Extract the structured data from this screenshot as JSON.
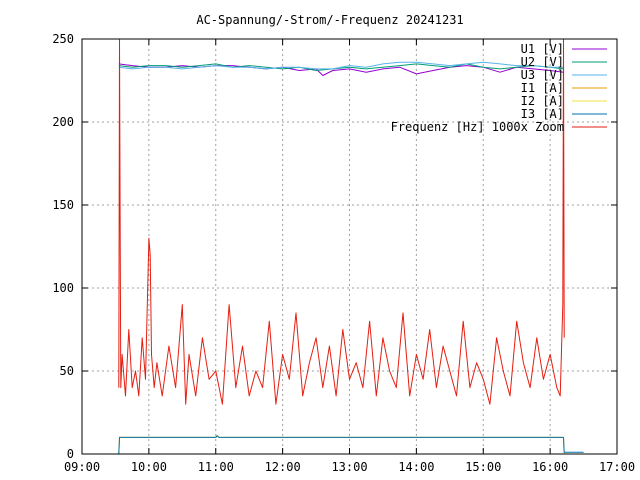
{
  "chart_data": {
    "type": "line",
    "title": "AC-Spannung/-Strom/-Frequenz 20241231",
    "xlabel": "",
    "ylabel": "",
    "x_unit": "time of day (hours)",
    "xlim": [
      9,
      17
    ],
    "ylim": [
      0,
      250
    ],
    "grid": true,
    "legend_position": "top-right",
    "x_ticks": [
      {
        "value": 9,
        "label": "09:00"
      },
      {
        "value": 10,
        "label": "10:00"
      },
      {
        "value": 11,
        "label": "11:00"
      },
      {
        "value": 12,
        "label": "12:00"
      },
      {
        "value": 13,
        "label": "13:00"
      },
      {
        "value": 14,
        "label": "14:00"
      },
      {
        "value": 15,
        "label": "15:00"
      },
      {
        "value": 16,
        "label": "16:00"
      },
      {
        "value": 17,
        "label": "17:00"
      }
    ],
    "y_ticks": [
      {
        "value": 0,
        "label": "0"
      },
      {
        "value": 50,
        "label": "50"
      },
      {
        "value": 100,
        "label": "100"
      },
      {
        "value": 150,
        "label": "150"
      },
      {
        "value": 200,
        "label": "200"
      },
      {
        "value": 250,
        "label": "250"
      }
    ],
    "series": [
      {
        "name": "U1 [V]",
        "color": "#9400d3",
        "x": [
          9.55,
          9.75,
          10.0,
          10.25,
          10.5,
          10.75,
          11.0,
          11.25,
          11.5,
          11.75,
          12.0,
          12.25,
          12.5,
          12.6,
          12.75,
          13.0,
          13.25,
          13.5,
          13.75,
          14.0,
          14.25,
          14.5,
          14.75,
          15.0,
          15.25,
          15.5,
          15.75,
          16.0,
          16.2
        ],
        "y": [
          235,
          234,
          233,
          233,
          234,
          233,
          234,
          234,
          233,
          232,
          233,
          231,
          232,
          228,
          231,
          232,
          230,
          232,
          233,
          229,
          231,
          233,
          234,
          233,
          230,
          233,
          232,
          231,
          230
        ]
      },
      {
        "name": "U2 [V]",
        "color": "#009e73",
        "x": [
          9.55,
          9.75,
          10.0,
          10.25,
          10.5,
          10.75,
          11.0,
          11.25,
          11.5,
          11.75,
          12.0,
          12.25,
          12.5,
          12.75,
          13.0,
          13.25,
          13.5,
          13.75,
          14.0,
          14.25,
          14.5,
          14.75,
          15.0,
          15.25,
          15.5,
          15.75,
          16.0,
          16.2
        ],
        "y": [
          234,
          233,
          234,
          234,
          233,
          234,
          235,
          233,
          234,
          233,
          232,
          233,
          231,
          232,
          233,
          232,
          233,
          234,
          235,
          234,
          233,
          235,
          233,
          232,
          233,
          234,
          233,
          232
        ]
      },
      {
        "name": "U3 [V]",
        "color": "#56b4e9",
        "x": [
          9.55,
          9.75,
          10.0,
          10.25,
          10.5,
          10.75,
          11.0,
          11.25,
          11.5,
          11.75,
          12.0,
          12.25,
          12.5,
          12.75,
          13.0,
          13.25,
          13.5,
          13.75,
          14.0,
          14.25,
          14.5,
          14.75,
          15.0,
          15.25,
          15.5,
          15.75,
          16.0,
          16.2
        ],
        "y": [
          233,
          232,
          233,
          233,
          232,
          233,
          234,
          233,
          233,
          232,
          233,
          233,
          232,
          232,
          234,
          233,
          235,
          236,
          236,
          235,
          234,
          235,
          236,
          235,
          234,
          234,
          233,
          233
        ]
      },
      {
        "name": "I1 [A]",
        "color": "#e69f00",
        "x": [
          9.55,
          9.56,
          10.0,
          10.5,
          11.0,
          11.02,
          11.05,
          11.5,
          12.0,
          12.5,
          13.0,
          13.5,
          14.0,
          14.5,
          15.0,
          15.5,
          16.0,
          16.2,
          16.21
        ],
        "y": [
          0,
          10,
          10,
          10,
          10,
          11,
          10,
          10,
          10,
          10,
          10,
          10,
          10,
          10,
          10,
          10,
          10,
          10,
          0
        ]
      },
      {
        "name": "I2 [A]",
        "color": "#f0e442",
        "x": [
          9.55,
          9.56,
          10.0,
          10.5,
          11.0,
          11.02,
          11.05,
          11.5,
          12.0,
          12.5,
          13.0,
          13.5,
          14.0,
          14.5,
          15.0,
          15.5,
          16.0,
          16.2,
          16.21
        ],
        "y": [
          0,
          10,
          10,
          10,
          10,
          11,
          10,
          10,
          10,
          10,
          10,
          10,
          10,
          10,
          10,
          10,
          10,
          10,
          0
        ]
      },
      {
        "name": "I3 [A]",
        "color": "#0072b2",
        "x": [
          9.55,
          9.56,
          10.0,
          10.5,
          11.0,
          11.02,
          11.05,
          11.5,
          12.0,
          12.5,
          13.0,
          13.5,
          14.0,
          14.5,
          15.0,
          15.5,
          16.0,
          16.2,
          16.21,
          16.5
        ],
        "y": [
          0,
          10,
          10,
          10,
          10,
          11,
          10,
          10,
          10,
          10,
          10,
          10,
          10,
          10,
          10,
          10,
          10,
          10,
          1,
          1
        ]
      },
      {
        "name": "Frequenz [Hz] 1000x Zoom",
        "color": "#e51e10",
        "x": [
          9.55,
          9.56,
          9.57,
          9.58,
          9.6,
          9.65,
          9.7,
          9.75,
          9.8,
          9.85,
          9.9,
          9.95,
          10.0,
          10.02,
          10.04,
          10.08,
          10.12,
          10.2,
          10.3,
          10.4,
          10.5,
          10.55,
          10.6,
          10.7,
          10.8,
          10.9,
          11.0,
          11.1,
          11.2,
          11.3,
          11.4,
          11.5,
          11.6,
          11.7,
          11.8,
          11.9,
          12.0,
          12.1,
          12.2,
          12.3,
          12.4,
          12.5,
          12.6,
          12.7,
          12.8,
          12.9,
          13.0,
          13.1,
          13.2,
          13.3,
          13.4,
          13.5,
          13.6,
          13.7,
          13.8,
          13.9,
          14.0,
          14.1,
          14.2,
          14.3,
          14.4,
          14.5,
          14.6,
          14.7,
          14.8,
          14.9,
          15.0,
          15.1,
          15.2,
          15.3,
          15.4,
          15.5,
          15.6,
          15.7,
          15.8,
          15.9,
          16.0,
          16.1,
          16.15,
          16.19,
          16.2,
          16.21
        ],
        "y": [
          40,
          250,
          145,
          40,
          60,
          35,
          75,
          40,
          50,
          35,
          70,
          45,
          130,
          120,
          60,
          40,
          55,
          35,
          65,
          40,
          90,
          30,
          60,
          35,
          70,
          45,
          50,
          30,
          90,
          40,
          65,
          35,
          50,
          40,
          80,
          30,
          60,
          45,
          85,
          35,
          55,
          70,
          40,
          65,
          35,
          75,
          45,
          55,
          40,
          80,
          35,
          70,
          50,
          40,
          85,
          35,
          60,
          45,
          75,
          40,
          65,
          50,
          35,
          80,
          40,
          55,
          45,
          30,
          70,
          50,
          35,
          80,
          55,
          40,
          70,
          45,
          60,
          40,
          35,
          90,
          250,
          70
        ]
      }
    ]
  }
}
